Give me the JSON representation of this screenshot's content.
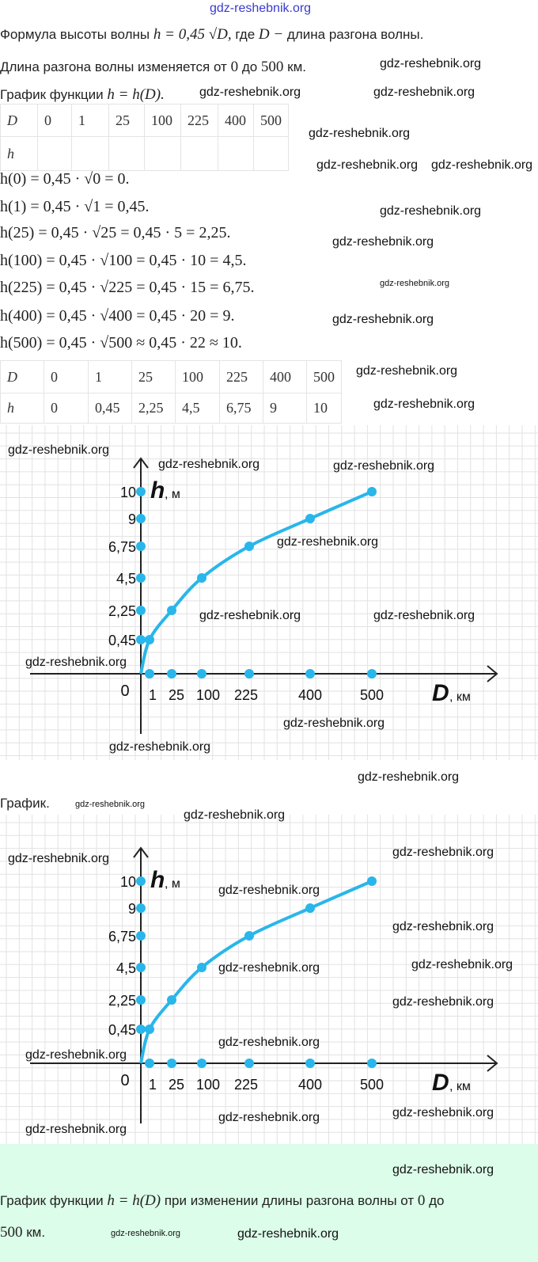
{
  "watermark": "gdz-reshebnik.org",
  "intro": {
    "formula_prefix": "Формула высоты волны",
    "formula": "h = 0,45 √D,",
    "formula_mid": "где",
    "formula_var": "D −",
    "formula_suffix": "длина разгона волны.",
    "range_prefix": "Длина разгона волны изменяется от",
    "range_from": "0",
    "range_mid": "до",
    "range_to": "500",
    "range_suffix": "км.",
    "graph_prefix": "График функции",
    "graph_formula": "h = h(D)."
  },
  "table_empty": {
    "rows": [
      [
        "D",
        "0",
        "1",
        "25",
        "100",
        "225",
        "400",
        "500"
      ],
      [
        "h",
        "",
        "",
        "",
        "",
        "",
        "",
        ""
      ]
    ]
  },
  "calculations": [
    "h(0) = 0,45 · √0 = 0.",
    "h(1) = 0,45 · √1 = 0,45.",
    "h(25) = 0,45 · √25 = 0,45 · 5 = 2,25.",
    "h(100) = 0,45 · √100 = 0,45 · 10 = 4,5.",
    "h(225) = 0,45 · √225 = 0,45 · 15 = 6,75.",
    "h(400) = 0,45 · √400 = 0,45 · 20 = 9.",
    "h(500) = 0,45 · √500 ≈ 0,45 · 22 ≈ 10."
  ],
  "table_filled": {
    "rows": [
      [
        "D",
        "0",
        "1",
        "25",
        "100",
        "225",
        "400",
        "500"
      ],
      [
        "h",
        "0",
        "0,45",
        "2,25",
        "4,5",
        "6,75",
        "9",
        "10"
      ]
    ]
  },
  "graph_caption": "График.",
  "conclusion": {
    "prefix": "График функции",
    "formula": "h = h(D)",
    "mid": "при изменении длины разгона волны от",
    "from": "0",
    "to_word": "до",
    "to": "500",
    "suffix": "км."
  },
  "chart_data": {
    "type": "line",
    "title": "",
    "xlabel": "D",
    "xunit": ", км",
    "ylabel": "h",
    "yunit": ", м",
    "origin_label": "0",
    "x": [
      0,
      1,
      25,
      100,
      225,
      400,
      500
    ],
    "y": [
      0,
      0.45,
      2.25,
      4.5,
      6.75,
      9,
      10
    ],
    "x_tick_labels": [
      "1",
      "25",
      "100",
      "225",
      "400",
      "500"
    ],
    "y_tick_labels": [
      "0,45",
      "2,25",
      "4,5",
      "6,75",
      "9",
      "10"
    ],
    "line_color": "#29b6ea",
    "grid": true,
    "grid_color": "#e2e2e2"
  }
}
